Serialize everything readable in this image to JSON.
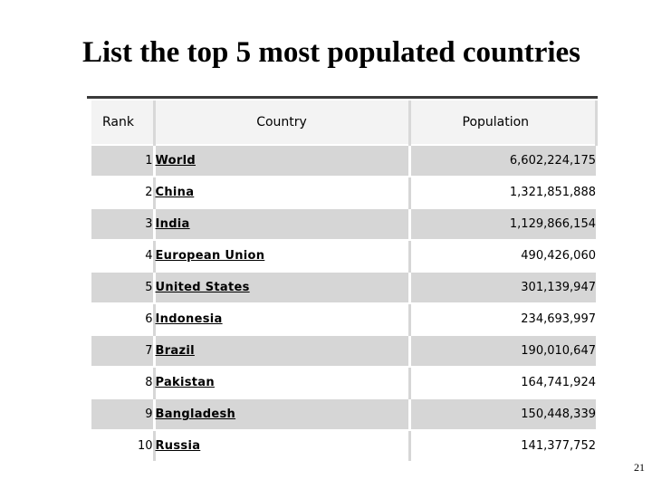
{
  "slide": {
    "title": "List the top 5 most populated countries",
    "page_number": "21"
  },
  "table": {
    "headers": {
      "rank": "Rank",
      "country": "Country",
      "population": "Population"
    },
    "rows": [
      {
        "rank": "1",
        "country": "World",
        "population": "6,602,224,175"
      },
      {
        "rank": "2",
        "country": "China",
        "population": "1,321,851,888"
      },
      {
        "rank": "3",
        "country": "India",
        "population": "1,129,866,154"
      },
      {
        "rank": "4",
        "country": "European Union",
        "population": "490,426,060"
      },
      {
        "rank": "5",
        "country": "United States",
        "population": "301,139,947"
      },
      {
        "rank": "6",
        "country": "Indonesia",
        "population": "234,693,997"
      },
      {
        "rank": "7",
        "country": "Brazil",
        "population": "190,010,647"
      },
      {
        "rank": "8",
        "country": "Pakistan",
        "population": "164,741,924"
      },
      {
        "rank": "9",
        "country": "Bangladesh",
        "population": "150,448,339"
      },
      {
        "rank": "10",
        "country": "Russia",
        "population": "141,377,752"
      }
    ]
  }
}
